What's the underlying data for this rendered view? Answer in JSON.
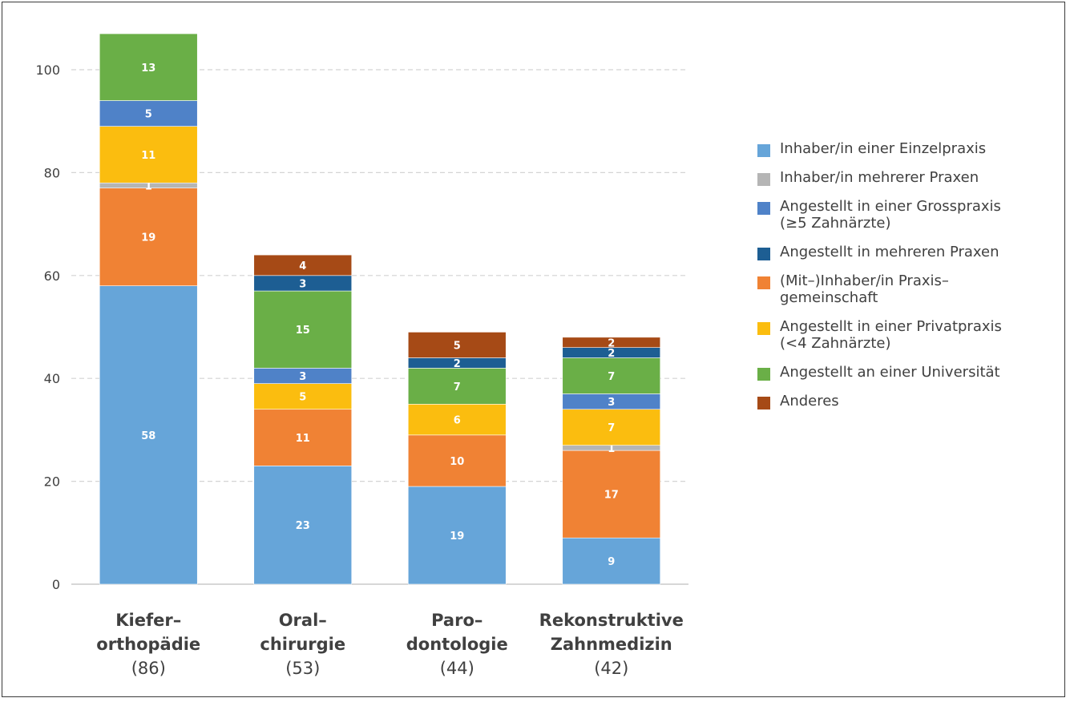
{
  "chart_data": {
    "type": "bar",
    "stacked": true,
    "title": "",
    "xlabel": "",
    "ylabel": "",
    "ylim": [
      0,
      107
    ],
    "yticks": [
      0,
      20,
      40,
      60,
      80,
      100
    ],
    "grid": "horizontal dashed",
    "legend_position": "right",
    "categories": [
      {
        "name": "Kiefer–\northopädie",
        "count": "(86)"
      },
      {
        "name": "Oral–\nchirurgie",
        "count": "(53)"
      },
      {
        "name": "Paro–\ndontologie",
        "count": "(44)"
      },
      {
        "name": "Rekonstruktive\nZahnmedizin",
        "count": "(42)"
      }
    ],
    "series": [
      {
        "name": "Inhaber/in einer Einzelpraxis",
        "color": "#66a5d9",
        "values": [
          58,
          23,
          19,
          9
        ]
      },
      {
        "name": "(Mit–)Inhaber/in Praxis–\ngemeinschaft",
        "color": "#f08234",
        "values": [
          19,
          11,
          10,
          17
        ]
      },
      {
        "name": "Inhaber/in mehrerer Praxen",
        "color": "#b5b5b5",
        "values": [
          1,
          0,
          0,
          1
        ]
      },
      {
        "name": "Angestellt in einer Privatpraxis\n(<4 Zahnärzte)",
        "color": "#fbbd0f",
        "values": [
          11,
          5,
          6,
          7
        ]
      },
      {
        "name": "Angestellt in einer Grosspraxis\n(≥5 Zahnärzte)",
        "color": "#4f82c8",
        "values": [
          5,
          3,
          0,
          3
        ]
      },
      {
        "name": "Angestellt an einer Universität",
        "color": "#6aaf47",
        "values": [
          13,
          15,
          7,
          7
        ]
      },
      {
        "name": "Angestellt in mehreren Praxen",
        "color": "#1d5e93",
        "values": [
          0,
          3,
          2,
          2
        ]
      },
      {
        "name": "Anderes",
        "color": "#a64a16",
        "values": [
          0,
          4,
          5,
          2
        ]
      }
    ],
    "legend_order": [
      "Inhaber/in einer Einzelpraxis",
      "Inhaber/in mehrerer Praxen",
      "Angestellt in einer Grosspraxis\n(≥5 Zahnärzte)",
      "Angestellt in mehreren Praxen",
      "(Mit–)Inhaber/in Praxis–\ngemeinschaft",
      "Angestellt in einer Privatpraxis\n(<4 Zahnärzte)",
      "Angestellt an einer Universität",
      "Anderes"
    ]
  }
}
